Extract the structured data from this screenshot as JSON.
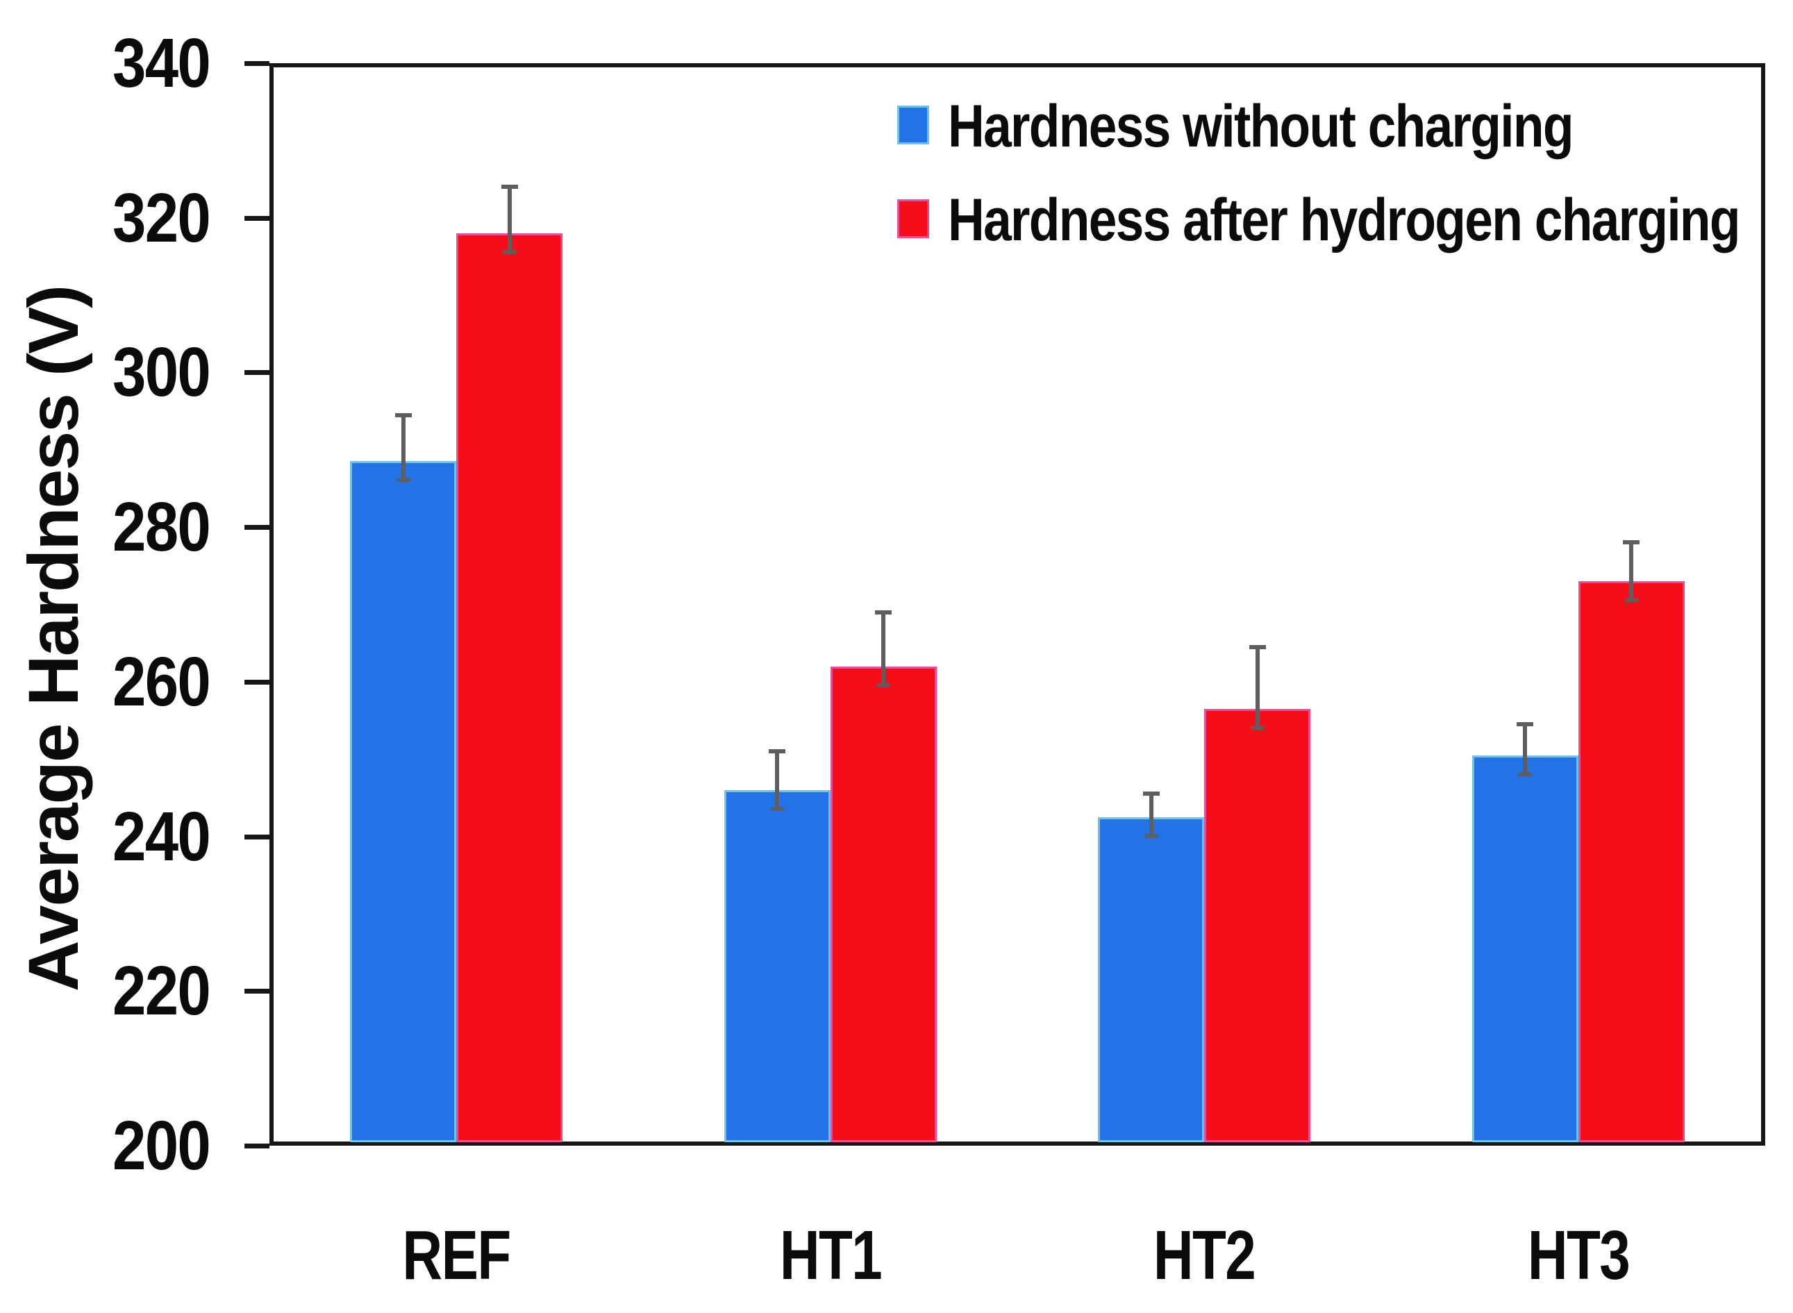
{
  "chart_data": {
    "type": "bar",
    "title": "",
    "xlabel": "",
    "ylabel": "Average Hardness (V)",
    "categories": [
      "REF",
      "HT1",
      "HT2",
      "HT3"
    ],
    "series": [
      {
        "name": "Hardness without charging",
        "color": "#2273E6",
        "edge_color": "#6FC2EF",
        "values": [
          288.5,
          246,
          242.5,
          250.5
        ],
        "errors_plus": [
          6,
          5,
          3,
          4
        ]
      },
      {
        "name": "Hardness after hydrogen charging",
        "color": "#F50D1A",
        "edge_color": "#F04C96",
        "values": [
          318,
          262,
          256.5,
          273
        ],
        "errors_plus": [
          6,
          7,
          8,
          5
        ]
      }
    ],
    "y_axis": {
      "min": 200,
      "max": 340,
      "step": 20
    },
    "legend_position": "top-right",
    "grid": false,
    "error_bar_color": "#5E5E5E",
    "axis_color": "#161616",
    "text_color": "#0B0B0B",
    "background_color": "#FFFFFF"
  }
}
